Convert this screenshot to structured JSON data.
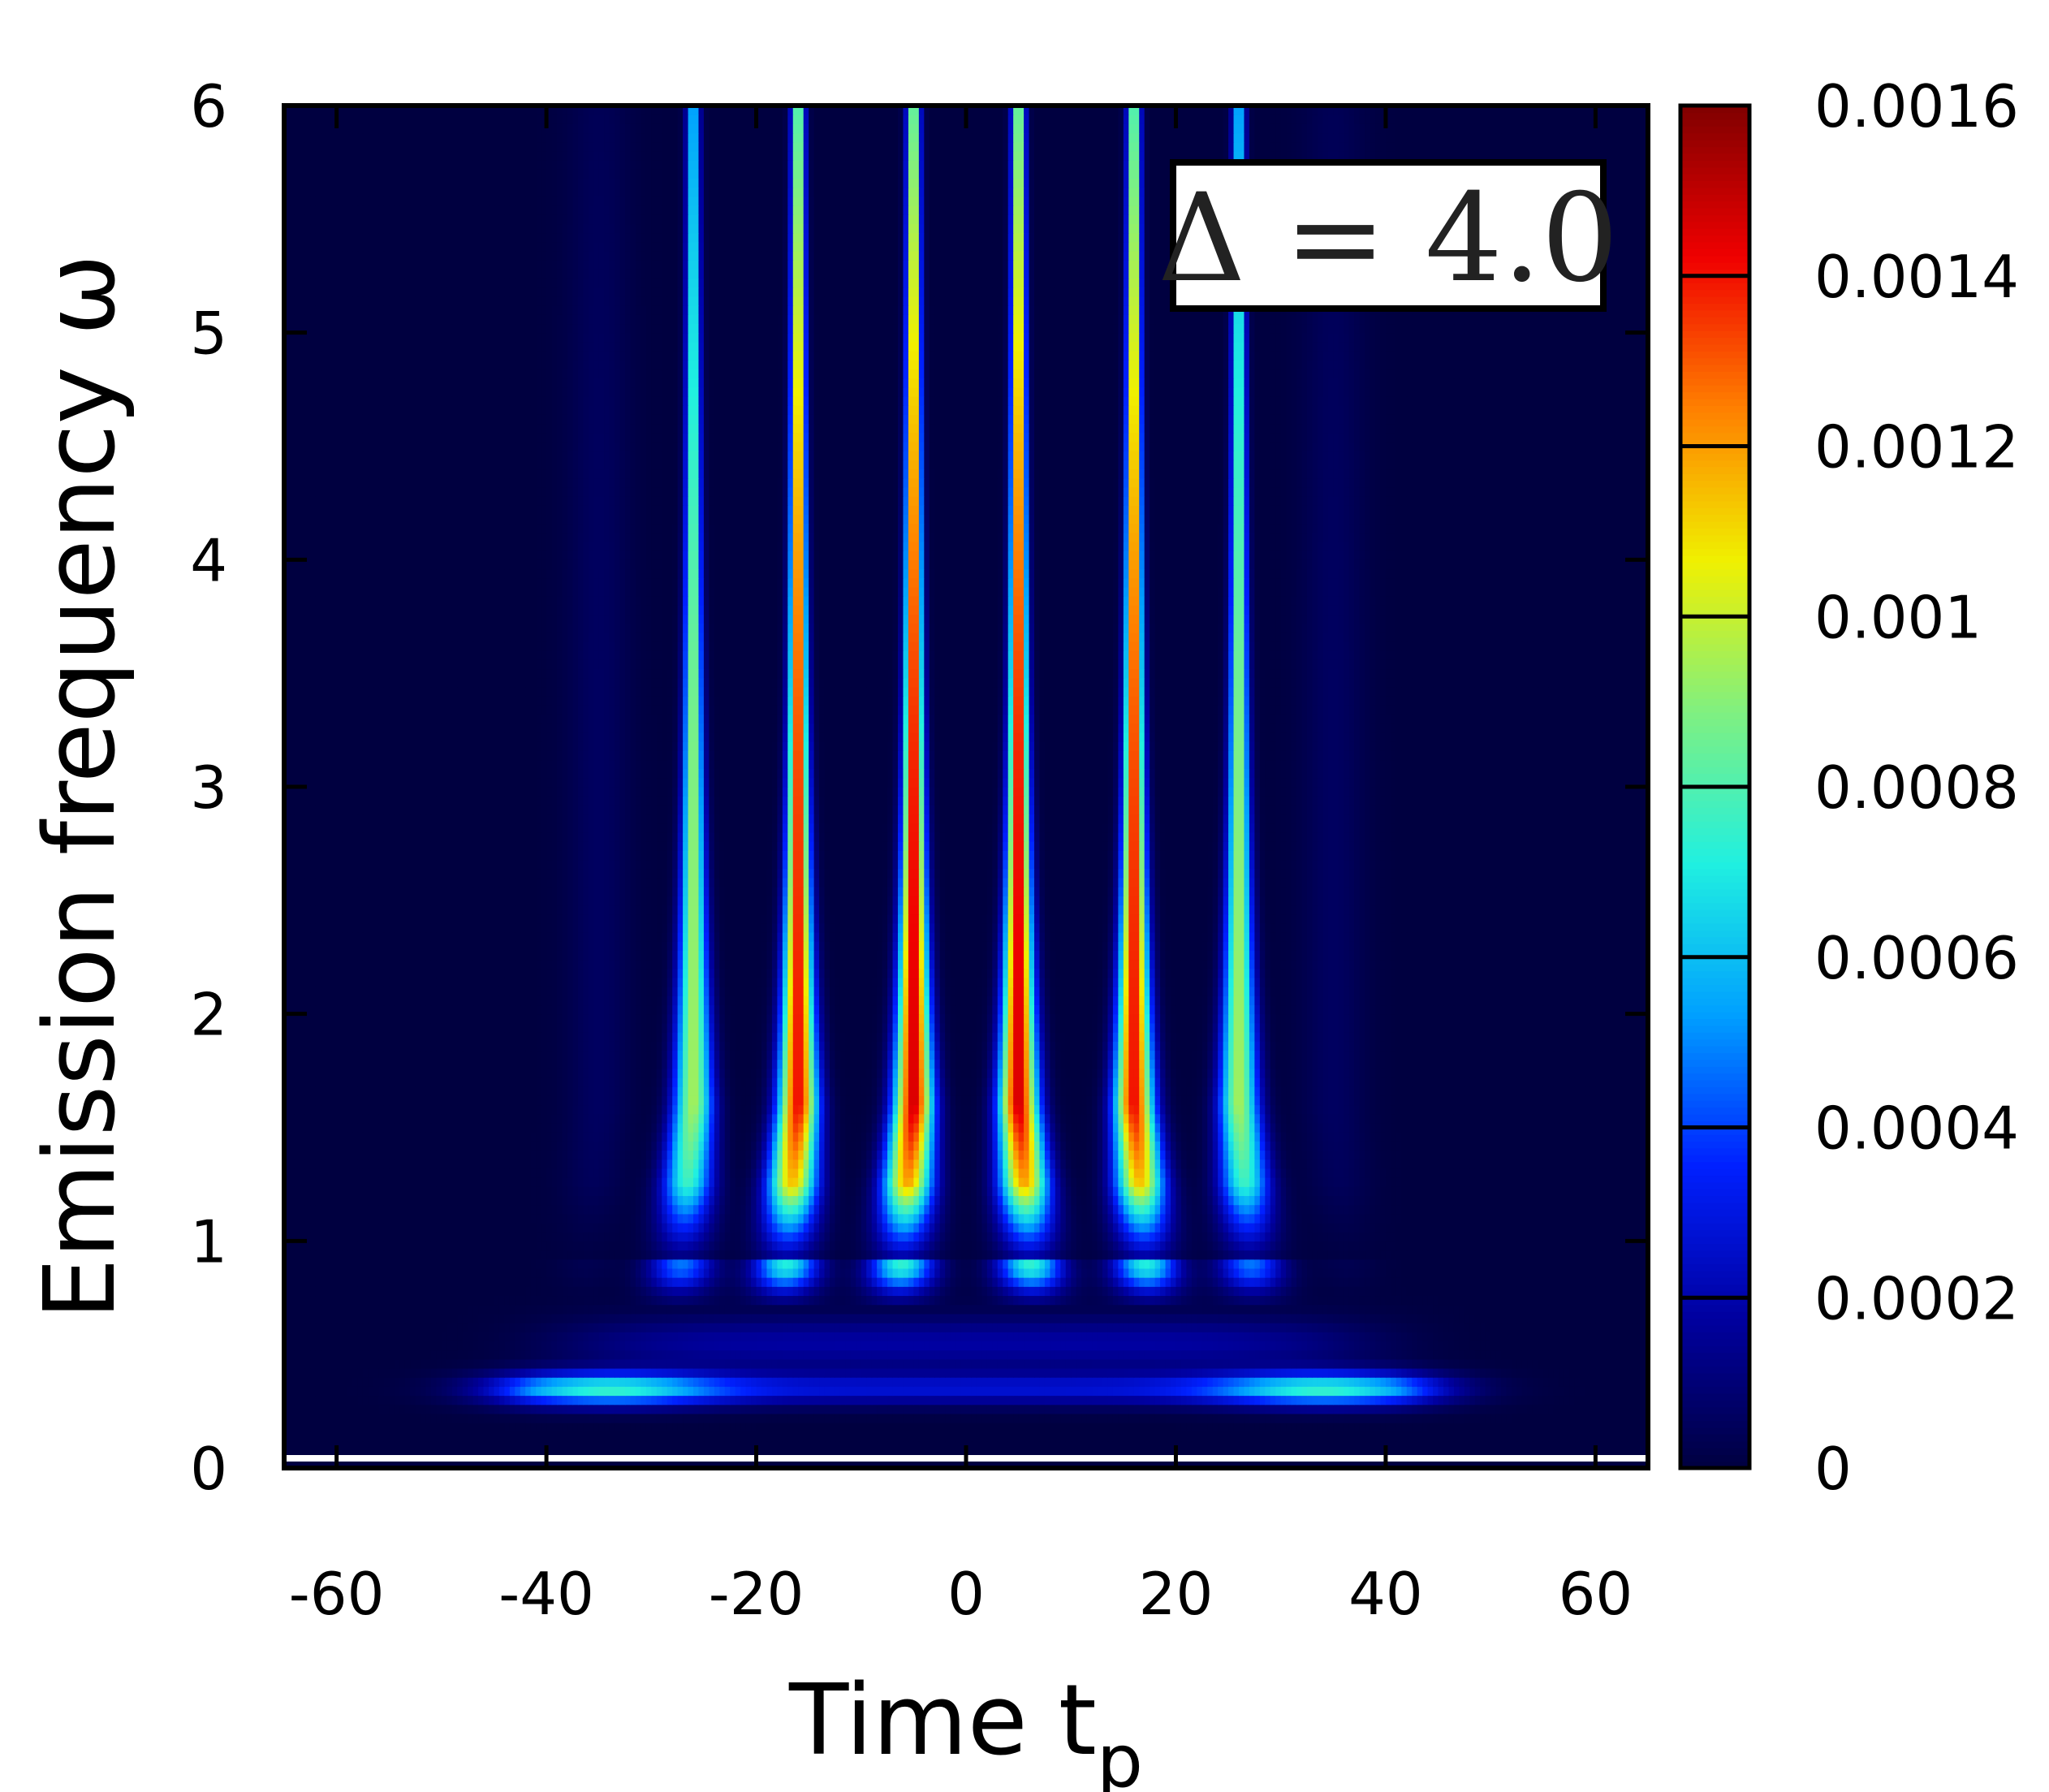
{
  "chart_data": {
    "type": "heatmap",
    "xlabel": "Time t",
    "xlabel_subscript": "p",
    "ylabel": "Emission frequency ω",
    "annotation": "Δ = 4.0",
    "xlim": [
      -65,
      65
    ],
    "ylim": [
      0,
      6
    ],
    "x_ticks": [
      "-60",
      "-40",
      "-20",
      "0",
      "20",
      "40",
      "60"
    ],
    "y_ticks": [
      "0",
      "1",
      "2",
      "3",
      "4",
      "5",
      "6"
    ],
    "colorbar": {
      "range": [
        0,
        0.0016
      ],
      "ticks": [
        "0",
        "0.0002",
        "0.0004",
        "0.0006",
        "0.0008",
        "0.001",
        "0.0012",
        "0.0014",
        "0.0016"
      ],
      "colors": [
        "#000040",
        "#0000a0",
        "#0020ff",
        "#00a0ff",
        "#20f0e0",
        "#80f080",
        "#f0f000",
        "#ff8000",
        "#f00000",
        "#800000"
      ]
    },
    "features": {
      "stripes": [
        {
          "t": -35,
          "peak": 6e-05
        },
        {
          "t": -26,
          "peak": 0.00095
        },
        {
          "t": -16,
          "peak": 0.00142
        },
        {
          "t": -5,
          "peak": 0.00148
        },
        {
          "t": 5,
          "peak": 0.00148
        },
        {
          "t": 16,
          "peak": 0.00142
        },
        {
          "t": 26,
          "peak": 0.00095
        },
        {
          "t": 35,
          "peak": 6e-05
        }
      ],
      "low_band": {
        "omega": 0.35,
        "t_range": [
          -50,
          50
        ],
        "peak": 0.00075,
        "peak_t": [
          -34,
          34
        ]
      },
      "stripe_onset_omega": 0.9
    }
  }
}
